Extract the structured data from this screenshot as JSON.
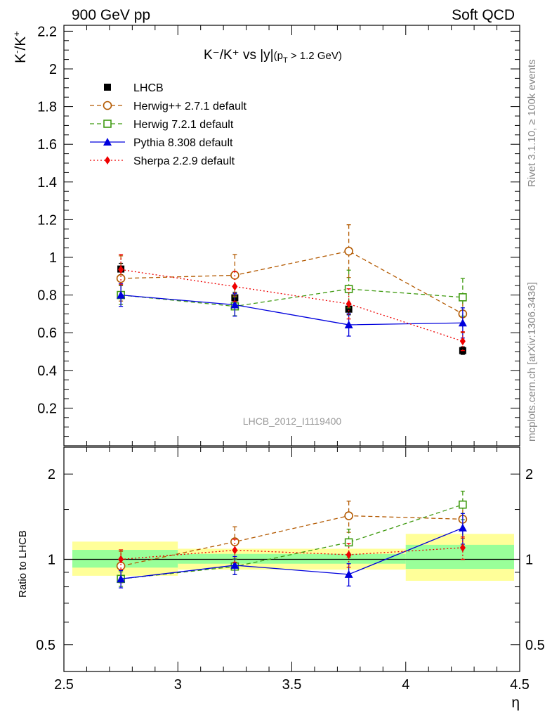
{
  "header": {
    "left": "900 GeV pp",
    "right": "Soft QCD"
  },
  "side_labels": {
    "rivet": "Rivet 3.1.10, ≥ 100k events",
    "mcplots": "mcplots.cern.ch [arXiv:1306.3436]"
  },
  "analysis_id": "LHCB_2012_I1119400",
  "colors": {
    "lhcb": "#000000",
    "herwigpp": "#b35900",
    "herwig7": "#3f9a10",
    "pythia": "#0000dd",
    "sherpa": "#ee0000",
    "band_yellow": "#ffff99",
    "band_green": "#99ff99"
  },
  "chart_data": [
    {
      "type": "scatter",
      "title": "K⁻/K⁺ vs |y|(p_T > 1.2 GeV)",
      "title_parts": {
        "main": "K⁻/K⁺ vs |y|",
        "paren_open": "(p",
        "sub": "T",
        "rest": " > 1.2 GeV)"
      },
      "ylabel": "K⁻/K⁺",
      "ylabel_parts": {
        "k1": "K",
        "sup1": "-",
        "slash": "/K",
        "sup2": "+"
      },
      "xlabel": "",
      "xlim": [
        2.5,
        4.5
      ],
      "ylim": [
        0,
        2.25
      ],
      "y_ticks": [
        "0.2",
        "0.4",
        "0.6",
        "0.8",
        "1",
        "1.2",
        "1.4",
        "1.6",
        "1.8",
        "2",
        "2.2"
      ],
      "legend_position": "top-left",
      "x": [
        2.75,
        3.25,
        3.75,
        4.25
      ],
      "series": [
        {
          "name": "LHCB",
          "key": "lhcb",
          "marker": "square-filled",
          "line": "none",
          "values": [
            0.938,
            0.785,
            0.725,
            0.505
          ],
          "errors": [
            0.03,
            0.03,
            0.03,
            0.02
          ]
        },
        {
          "name": "Herwig++ 2.7.1 default",
          "key": "herwigpp",
          "marker": "circle-open",
          "line": "dashed",
          "values": [
            0.888,
            0.905,
            1.033,
            0.7
          ],
          "errors": [
            0.12,
            0.11,
            0.14,
            0.1
          ]
        },
        {
          "name": "Herwig 7.2.1 default",
          "key": "herwig7",
          "marker": "square-open",
          "line": "dashed",
          "values": [
            0.8,
            0.74,
            0.832,
            0.788
          ],
          "errors": [
            0.05,
            0.05,
            0.1,
            0.1
          ]
        },
        {
          "name": "Pythia 8.308 default",
          "key": "pythia",
          "marker": "triangle-filled",
          "line": "solid",
          "values": [
            0.8,
            0.748,
            0.642,
            0.652
          ],
          "errors": [
            0.06,
            0.06,
            0.06,
            0.08
          ]
        },
        {
          "name": "Sherpa 2.2.9 default",
          "key": "sherpa",
          "marker": "diamond-filled",
          "line": "dotted",
          "values": [
            0.935,
            0.845,
            0.753,
            0.555
          ],
          "errors": [
            0.08,
            0.08,
            0.08,
            0.05
          ]
        }
      ]
    },
    {
      "type": "scatter",
      "ylabel": "Ratio to LHCB",
      "xlabel": "η",
      "xlim": [
        2.5,
        4.5
      ],
      "ylim": [
        0.4,
        2.3
      ],
      "y_scale": "log",
      "y_ticks": [
        "0.5",
        "1",
        "2"
      ],
      "x_ticks": [
        "2.5",
        "3",
        "3.5",
        "4",
        "4.5"
      ],
      "reference_line": 1,
      "bands": {
        "edges": [
          2.5,
          3.0,
          4.0,
          4.5
        ],
        "yellow": [
          [
            0.875,
            1.155
          ],
          [
            0.92,
            1.09
          ],
          [
            0.84,
            1.23
          ]
        ],
        "green": [
          [
            0.935,
            1.08
          ],
          [
            0.965,
            1.045
          ],
          [
            0.925,
            1.125
          ]
        ]
      },
      "x": [
        2.75,
        3.25,
        3.75,
        4.25
      ],
      "series": [
        {
          "name": "Herwig++ 2.7.1 default",
          "key": "herwigpp",
          "marker": "circle-open",
          "line": "dashed",
          "values": [
            0.947,
            1.153,
            1.425,
            1.386
          ],
          "errors": [
            0.12,
            0.15,
            0.18,
            0.2
          ]
        },
        {
          "name": "Herwig 7.2.1 default",
          "key": "herwig7",
          "marker": "square-open",
          "line": "dashed",
          "values": [
            0.853,
            0.943,
            1.148,
            1.56
          ],
          "errors": [
            0.05,
            0.06,
            0.13,
            0.18
          ]
        },
        {
          "name": "Pythia 8.308 default",
          "key": "pythia",
          "marker": "triangle-filled",
          "line": "solid",
          "values": [
            0.853,
            0.953,
            0.885,
            1.291
          ],
          "errors": [
            0.06,
            0.07,
            0.08,
            0.16
          ]
        },
        {
          "name": "Sherpa 2.2.9 default",
          "key": "sherpa",
          "marker": "diamond-filled",
          "line": "dotted",
          "values": [
            1.0,
            1.077,
            1.038,
            1.099
          ],
          "errors": [
            0.08,
            0.1,
            0.1,
            0.1
          ]
        }
      ]
    }
  ]
}
